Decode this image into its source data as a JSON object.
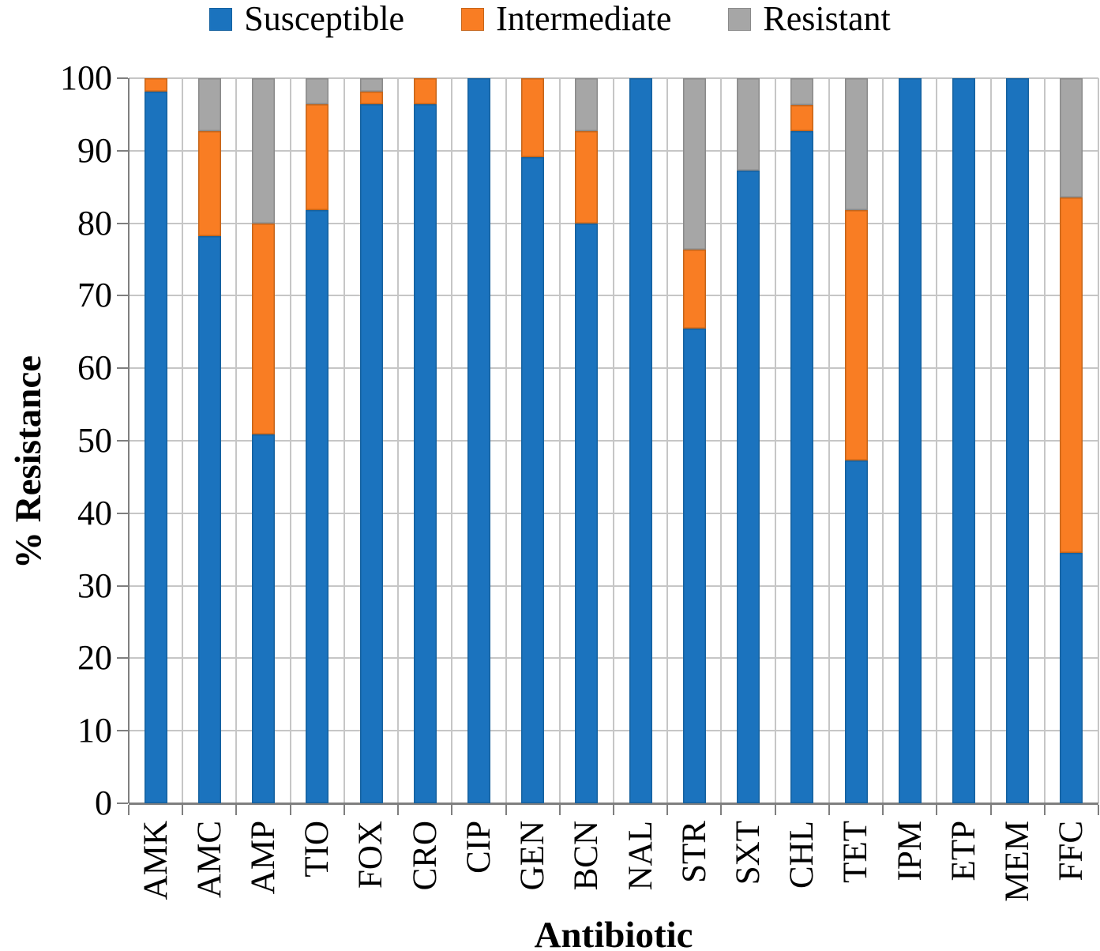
{
  "figure": {
    "y_axis_title": "% Resistance",
    "x_axis_title": "Antibiotic"
  },
  "legend": {
    "position": "top",
    "items": [
      {
        "label": "Susceptible",
        "color": "#1B73BE",
        "border": "#15619F"
      },
      {
        "label": "Intermediate",
        "color": "#F97D23",
        "border": "#C5651A"
      },
      {
        "label": "Resistant",
        "color": "#A6A6A6",
        "border": "#8A8A8A"
      }
    ]
  },
  "chart_data": {
    "type": "bar",
    "stacked": true,
    "orientation": "vertical",
    "title": "",
    "xlabel": "Antibiotic",
    "ylabel": "% Resistance",
    "ylim": [
      0,
      100
    ],
    "y_ticks": [
      0,
      10,
      20,
      30,
      40,
      50,
      60,
      70,
      80,
      90,
      100
    ],
    "grid": true,
    "legend_position": "top",
    "categories": [
      "AMK",
      "AMC",
      "AMP",
      "TIO",
      "FOX",
      "CRO",
      "CIP",
      "GEN",
      "BCN",
      "NAL",
      "STR",
      "SXT",
      "CHL",
      "TET",
      "IPM",
      "ETP",
      "MEM",
      "FFC"
    ],
    "series": [
      {
        "name": "Susceptible",
        "color": "#1B73BE",
        "border": "#15619F",
        "values": [
          98.2,
          78.2,
          50.9,
          81.8,
          96.4,
          96.4,
          100,
          89.1,
          80.0,
          100,
          65.5,
          87.3,
          92.7,
          47.3,
          100,
          100,
          100,
          34.5
        ]
      },
      {
        "name": "Intermediate",
        "color": "#F97D23",
        "border": "#C5651A",
        "values": [
          1.8,
          14.5,
          29.1,
          14.6,
          1.8,
          3.6,
          0,
          10.9,
          12.7,
          0,
          10.9,
          0,
          3.6,
          34.5,
          0,
          0,
          0,
          49.1
        ]
      },
      {
        "name": "Resistant",
        "color": "#A6A6A6",
        "border": "#8A8A8A",
        "values": [
          0,
          7.3,
          20.0,
          3.6,
          1.8,
          0,
          0,
          0,
          7.3,
          0,
          23.6,
          12.7,
          3.7,
          18.2,
          0,
          0,
          0,
          16.4
        ]
      }
    ]
  },
  "colors": {
    "gridline": "#C6C6C6",
    "axis": "#7F7F7F",
    "text": "#000000",
    "background": "#FFFFFF"
  }
}
